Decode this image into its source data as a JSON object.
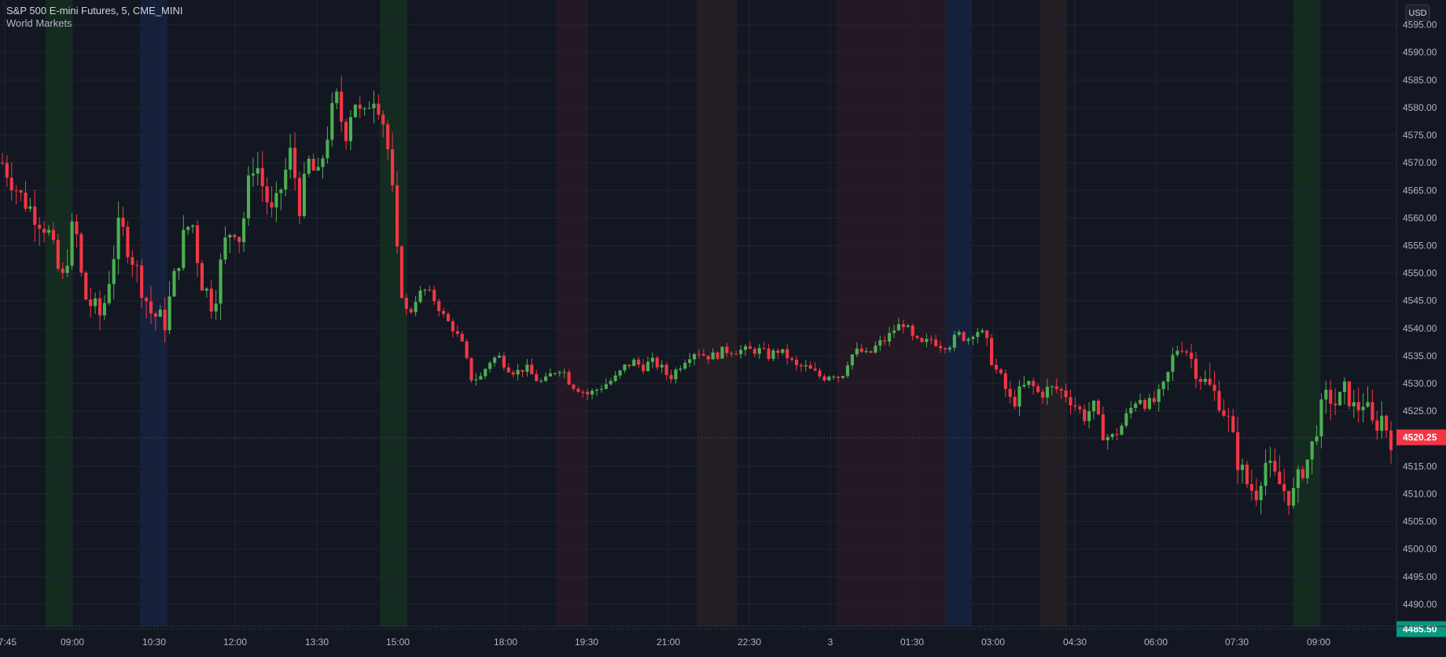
{
  "header": {
    "symbol_title": "S&P 500 E-mini Futures, 5, CME_MINI",
    "indicator_name": "World Markets"
  },
  "currency_label": "USD",
  "price_tag": {
    "value": "4520.25",
    "color": "#f23645"
  },
  "low_tag": {
    "value": "4485.50",
    "color": "#089981"
  },
  "colors": {
    "background": "#131722",
    "up": "#4caf50",
    "down": "#f23645",
    "grid": "#1f2433",
    "text": "#b2b5be",
    "session_green": "#153320",
    "session_blue": "#172444",
    "session_red": "#2a1a25",
    "session_orange": "#2a2224"
  },
  "chart_data": {
    "type": "candlestick",
    "interval": "5",
    "exchange": "CME_MINI",
    "y_axis_ticks": [
      4490.0,
      4495.0,
      4500.0,
      4505.0,
      4510.0,
      4515.0,
      4520.0,
      4525.0,
      4530.0,
      4535.0,
      4540.0,
      4545.0,
      4550.0,
      4555.0,
      4560.0,
      4565.0,
      4570.0,
      4575.0,
      4580.0,
      4585.0,
      4590.0,
      4595.0
    ],
    "ylim": [
      4486.0,
      4599.5
    ],
    "x_time_range": [
      "07:30",
      "10:45"
    ],
    "x_axis_ticks": [
      "07:45",
      "09:00",
      "10:30",
      "12:00",
      "13:30",
      "15:00",
      "18:00",
      "19:30",
      "21:00",
      "22:30",
      "3",
      "01:30",
      "03:00",
      "04:30",
      "06:00",
      "07:30",
      "09:00"
    ],
    "session_bands": [
      {
        "start": "08:30",
        "end": "09:00",
        "color": "green"
      },
      {
        "start": "10:15",
        "end": "10:45",
        "color": "blue"
      },
      {
        "start": "14:40",
        "end": "15:10",
        "color": "green"
      },
      {
        "start": "17:55",
        "end": "19:30",
        "color": "red"
      },
      {
        "start": "21:30",
        "end": "22:15",
        "color": "orange"
      },
      {
        "start": "00:05",
        "end": "02:05",
        "color": "red"
      },
      {
        "start": "02:05",
        "end": "02:35",
        "color": "blue"
      },
      {
        "start": "03:50",
        "end": "04:20",
        "color": "orange"
      },
      {
        "start": "08:30",
        "end": "09:00",
        "color": "green"
      }
    ],
    "close_path": [
      [
        0,
        4570
      ],
      [
        1.0,
        4564
      ],
      [
        2.5,
        4558
      ],
      [
        3.3,
        4548
      ],
      [
        4.0,
        4560
      ],
      [
        4.5,
        4546
      ],
      [
        5.5,
        4542
      ],
      [
        6.5,
        4559
      ],
      [
        7.3,
        4552
      ],
      [
        8.2,
        4543
      ],
      [
        9.0,
        4541
      ],
      [
        10.0,
        4556
      ],
      [
        10.5,
        4560
      ],
      [
        11.0,
        4549
      ],
      [
        11.7,
        4544
      ],
      [
        12.3,
        4555
      ],
      [
        12.8,
        4559
      ],
      [
        13.2,
        4556
      ],
      [
        13.7,
        4567
      ],
      [
        14.0,
        4571
      ],
      [
        14.5,
        4565
      ],
      [
        15.0,
        4560
      ],
      [
        15.5,
        4566
      ],
      [
        16.0,
        4572
      ],
      [
        16.5,
        4562
      ],
      [
        17.0,
        4570
      ],
      [
        17.5,
        4567
      ],
      [
        18.0,
        4575
      ],
      [
        18.5,
        4582
      ],
      [
        19.0,
        4575
      ],
      [
        19.5,
        4582
      ],
      [
        20.0,
        4577
      ],
      [
        20.5,
        4583
      ],
      [
        21.0,
        4580
      ],
      [
        21.5,
        4570
      ],
      [
        22.0,
        4548
      ],
      [
        22.5,
        4542
      ],
      [
        23.0,
        4546
      ],
      [
        23.5,
        4547
      ],
      [
        24.0,
        4545
      ],
      [
        24.5,
        4542
      ],
      [
        25.0,
        4540
      ],
      [
        25.5,
        4537
      ],
      [
        26.0,
        4531
      ],
      [
        26.5,
        4531
      ],
      [
        27.0,
        4534
      ],
      [
        27.5,
        4535
      ],
      [
        28.0,
        4533
      ],
      [
        28.5,
        4532
      ],
      [
        29.0,
        4533
      ],
      [
        29.5,
        4531
      ],
      [
        30.0,
        4530
      ],
      [
        30.5,
        4532
      ],
      [
        31.0,
        4533
      ],
      [
        31.5,
        4530
      ],
      [
        32.0,
        4529
      ],
      [
        32.5,
        4528
      ],
      [
        33.0,
        4529
      ],
      [
        33.5,
        4530
      ],
      [
        34.0,
        4531
      ],
      [
        34.5,
        4533
      ],
      [
        35.0,
        4534
      ],
      [
        35.5,
        4533
      ],
      [
        36.0,
        4534
      ],
      [
        36.5,
        4533
      ],
      [
        37.0,
        4531
      ],
      [
        37.5,
        4533
      ],
      [
        38.0,
        4535
      ],
      [
        38.5,
        4536
      ],
      [
        39.0,
        4535
      ],
      [
        39.5,
        4535
      ],
      [
        40.0,
        4536
      ],
      [
        40.5,
        4536
      ],
      [
        41.0,
        4536
      ],
      [
        41.5,
        4536
      ],
      [
        42.0,
        4536
      ],
      [
        42.5,
        4535
      ],
      [
        43.0,
        4536
      ],
      [
        43.5,
        4535
      ],
      [
        44.0,
        4533
      ],
      [
        44.5,
        4533
      ],
      [
        45.0,
        4532
      ],
      [
        45.5,
        4531
      ],
      [
        46.0,
        4532
      ],
      [
        46.5,
        4531
      ],
      [
        47.0,
        4535
      ],
      [
        47.5,
        4536
      ],
      [
        48.0,
        4535
      ],
      [
        48.5,
        4537
      ],
      [
        49.0,
        4538
      ],
      [
        49.5,
        4540
      ],
      [
        50.0,
        4541
      ],
      [
        50.5,
        4538
      ],
      [
        51.0,
        4537
      ],
      [
        51.5,
        4538
      ],
      [
        52.0,
        4537
      ],
      [
        52.5,
        4537
      ],
      [
        53.0,
        4539
      ],
      [
        53.5,
        4538
      ],
      [
        54.0,
        4540
      ],
      [
        54.5,
        4538
      ],
      [
        55.0,
        4533
      ],
      [
        55.5,
        4530
      ],
      [
        56.0,
        4526
      ],
      [
        56.5,
        4529
      ],
      [
        57.0,
        4530
      ],
      [
        57.5,
        4528
      ],
      [
        58.0,
        4529
      ],
      [
        58.5,
        4529
      ],
      [
        59.0,
        4528
      ],
      [
        59.5,
        4526
      ],
      [
        60.0,
        4524
      ],
      [
        60.5,
        4526
      ],
      [
        61.0,
        4521
      ],
      [
        61.5,
        4520
      ],
      [
        62.0,
        4522
      ],
      [
        62.5,
        4525
      ],
      [
        63.0,
        4528
      ],
      [
        63.5,
        4526
      ],
      [
        64.0,
        4527
      ],
      [
        64.5,
        4530
      ],
      [
        65.0,
        4536
      ],
      [
        65.5,
        4537
      ],
      [
        66.0,
        4534
      ],
      [
        66.5,
        4531
      ],
      [
        67.0,
        4529
      ],
      [
        67.5,
        4527
      ],
      [
        68.0,
        4523
      ],
      [
        68.5,
        4516
      ],
      [
        69.0,
        4512
      ],
      [
        69.5,
        4510
      ],
      [
        70.0,
        4516
      ],
      [
        70.5,
        4513
      ],
      [
        71.0,
        4511
      ],
      [
        71.5,
        4509
      ],
      [
        72.0,
        4514
      ],
      [
        72.5,
        4517
      ],
      [
        73.0,
        4524
      ],
      [
        73.5,
        4528
      ],
      [
        74.0,
        4526
      ],
      [
        74.5,
        4529
      ],
      [
        75.0,
        4525
      ],
      [
        75.5,
        4527
      ],
      [
        76.0,
        4522
      ],
      [
        76.5,
        4524
      ],
      [
        77.0,
        4520
      ]
    ]
  }
}
